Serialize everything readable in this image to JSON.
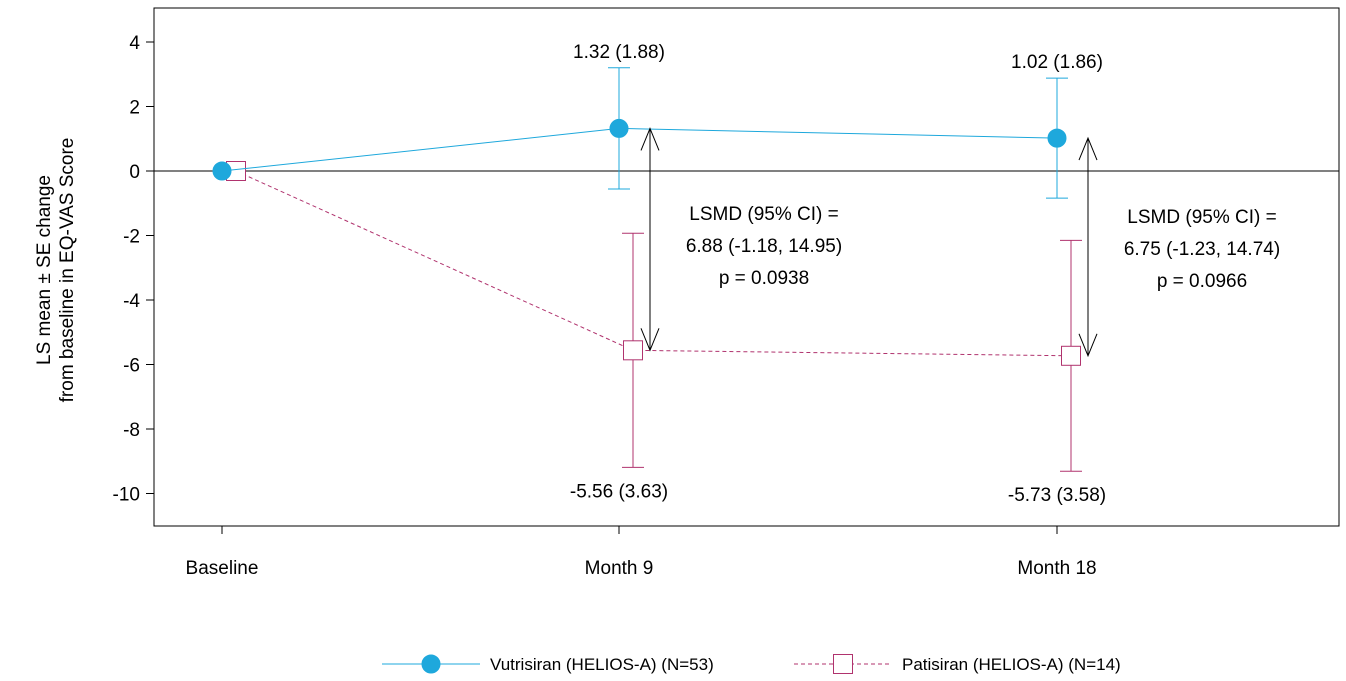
{
  "chart_data": {
    "type": "line",
    "ylabel_lines": [
      "LS mean ± SE change",
      "from baseline in EQ-VAS Score"
    ],
    "categories": [
      "Baseline",
      "Month 9",
      "Month 18"
    ],
    "ylim": [
      -11,
      5
    ],
    "yticks": [
      4,
      2,
      0,
      -2,
      -4,
      -6,
      -8,
      -10
    ],
    "ytick_labels": [
      "4",
      "2",
      "0",
      "-2",
      "-4",
      "-6",
      "-8",
      "-10"
    ],
    "reference_line_y": 0,
    "series": [
      {
        "name": "Vutrisiran (HELIOS-A) (N=53)",
        "color": "#1ea8dc",
        "marker": "filled-circle",
        "line_style": "solid",
        "values": [
          0,
          1.32,
          1.02
        ],
        "se": [
          0,
          1.88,
          1.86
        ],
        "labels": [
          "",
          "1.32 (1.88)",
          "1.02 (1.86)"
        ]
      },
      {
        "name": "Patisiran (HELIOS-A) (N=14)",
        "color": "#b0336e",
        "marker": "open-square",
        "line_style": "dashed",
        "values": [
          0,
          -5.56,
          -5.73
        ],
        "se": [
          0,
          3.63,
          3.58
        ],
        "labels": [
          "",
          "-5.56 (3.63)",
          "-5.73 (3.58)"
        ]
      }
    ],
    "annotations": [
      {
        "category": "Month 9",
        "lines": [
          "LSMD (95% CI) =",
          "6.88 (-1.18, 14.95)",
          "p = 0.0938"
        ]
      },
      {
        "category": "Month 18",
        "lines": [
          "LSMD (95% CI) =",
          "6.75 (-1.23, 14.74)",
          "p = 0.0966"
        ]
      }
    ],
    "legend_position": "bottom-center",
    "grid": false
  }
}
